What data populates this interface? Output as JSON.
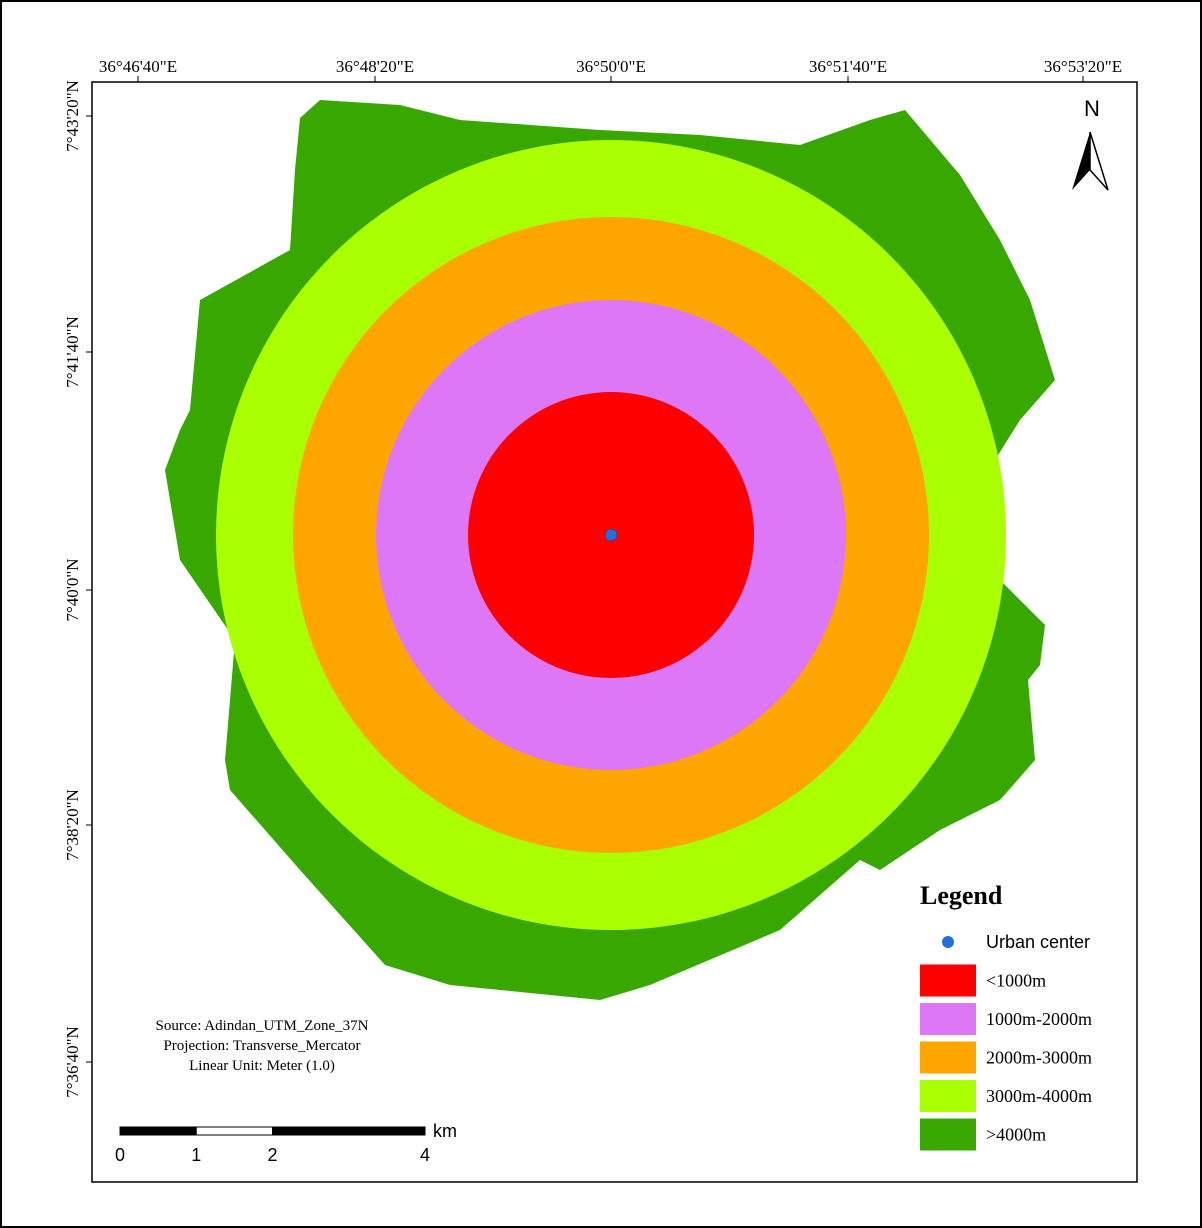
{
  "map": {
    "top_labels": [
      "36°46'40\"E",
      "36°48'20\"E",
      "36°50'0\"E",
      "36°51'40\"E",
      "36°53'20\"E"
    ],
    "left_labels": [
      "7°43'20\"N",
      "7°41'40\"N",
      "7°40'0\"N",
      "7°38'20\"N",
      "7°36'40\"N"
    ],
    "north": "N"
  },
  "legend": {
    "title": "Legend",
    "items": [
      {
        "label": "Urban center",
        "color": "#1f6fe0"
      },
      {
        "label": "<1000m",
        "color": "#ff0000"
      },
      {
        "label": "1000m-2000m",
        "color": "#dd77f5"
      },
      {
        "label": "2000m-3000m",
        "color": "#ffa500"
      },
      {
        "label": "3000m-4000m",
        "color": "#aaff00"
      },
      {
        "label": ">4000m",
        "color": "#38a800"
      }
    ]
  },
  "source_note": [
    "Source: Adindan_UTM_Zone_37N",
    "Projection: Transverse_Mercator",
    "Linear Unit: Meter (1.0)"
  ],
  "scale_bar": {
    "ticks": [
      0,
      1,
      2,
      4
    ],
    "unit": "km"
  }
}
